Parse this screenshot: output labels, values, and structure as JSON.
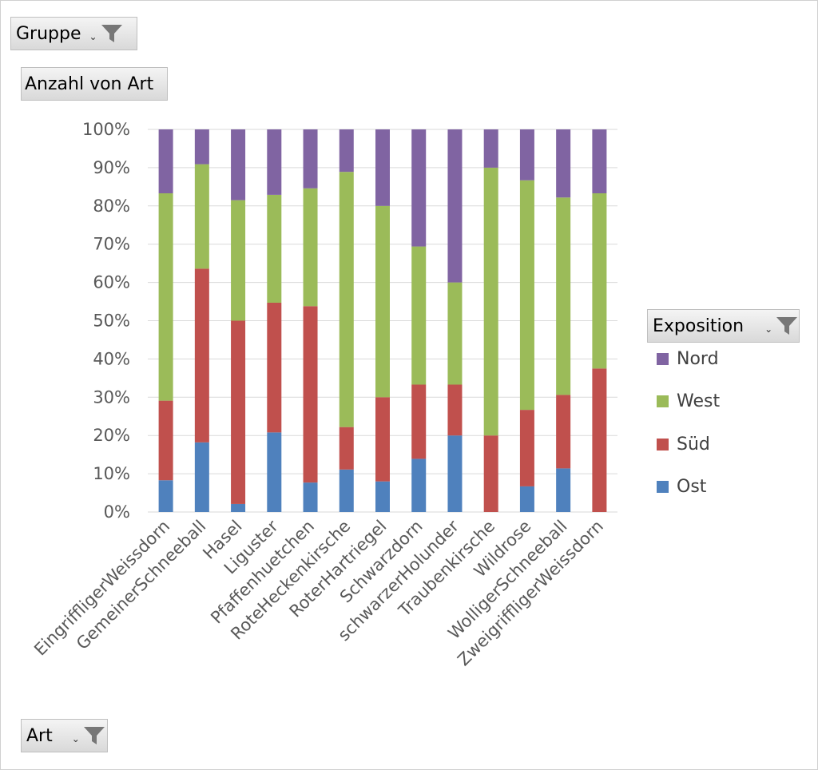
{
  "filters": {
    "gruppe_label": "Gruppe",
    "anzahl_label": "Anzahl von Art",
    "art_label": "Art",
    "exposition_label": "Exposition",
    "dropdown_glyph": "⌄"
  },
  "chart_data": {
    "type": "bar",
    "stacked": "percent",
    "categories": [
      "EingriffligerWeissdorn",
      "GemeinerSchneeball",
      "Hasel",
      "Liguster",
      "Pfaffenhuetchen",
      "RoteHeckenkirsche",
      "RoterHartriegel",
      "Schwarzdorn",
      "schwarzerHolunder",
      "Traubenkirsche",
      "Wildrose",
      "WolligerSchneeball",
      "ZweigriffligerWeissdorn"
    ],
    "series": [
      {
        "name": "Ost",
        "color": "#4f81bd",
        "values": [
          8.3,
          18.2,
          2.1,
          20.8,
          7.7,
          11.1,
          8.0,
          13.9,
          20.0,
          0,
          6.7,
          11.4,
          0
        ]
      },
      {
        "name": "Süd",
        "color": "#c0504d",
        "values": [
          20.8,
          45.4,
          47.9,
          33.9,
          46.1,
          11.1,
          22.0,
          19.4,
          13.3,
          20.0,
          20.0,
          19.2,
          37.5
        ]
      },
      {
        "name": "West",
        "color": "#9bbb59",
        "values": [
          54.2,
          27.3,
          31.5,
          28.2,
          30.8,
          66.7,
          50.0,
          36.1,
          26.7,
          70.0,
          60.0,
          51.6,
          45.8
        ]
      },
      {
        "name": "Nord",
        "color": "#8064a2",
        "values": [
          16.7,
          9.1,
          18.5,
          17.1,
          15.4,
          11.1,
          20.0,
          30.6,
          40.0,
          10.0,
          13.3,
          17.8,
          16.7
        ]
      }
    ],
    "yticks": [
      "0%",
      "10%",
      "20%",
      "30%",
      "40%",
      "50%",
      "60%",
      "70%",
      "80%",
      "90%",
      "100%"
    ],
    "ylim": [
      0,
      100
    ],
    "grid": true,
    "legend_order": [
      "Nord",
      "West",
      "Süd",
      "Ost"
    ],
    "legend_position": "right"
  }
}
